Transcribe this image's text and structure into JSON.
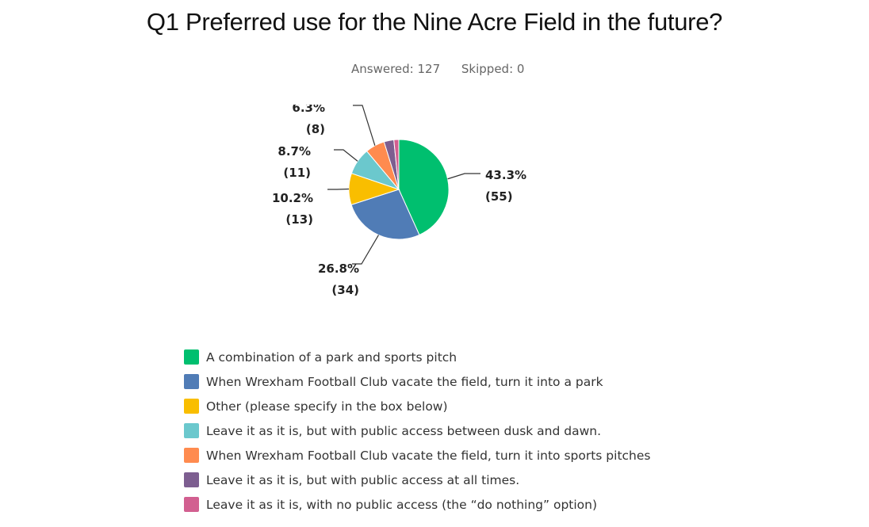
{
  "title": "Q1 Preferred use for the Nine Acre Field in the future?",
  "answered": "Answered: 127",
  "skipped": "Skipped: 0",
  "chart_data": {
    "type": "pie",
    "title": "Q1 Preferred use for the Nine Acre Field in the future?",
    "slices": [
      {
        "label": "A combination of a park and sports pitch",
        "percent": 43.3,
        "count": 55,
        "pct_label": "43.3%",
        "count_label": "(55)",
        "color": "#00bf6f"
      },
      {
        "label": "When Wrexham Football Club vacate the field, turn it into a park",
        "percent": 26.8,
        "count": 34,
        "pct_label": "26.8%",
        "count_label": "(34)",
        "color": "#507cb6"
      },
      {
        "label": "Other (please specify in the box below)",
        "percent": 10.2,
        "count": 13,
        "pct_label": "10.2%",
        "count_label": "(13)",
        "color": "#f9be00"
      },
      {
        "label": "Leave it as it is, but with public access between dusk and dawn.",
        "percent": 8.7,
        "count": 11,
        "pct_label": "8.7%",
        "count_label": "(11)",
        "color": "#6bc8cd"
      },
      {
        "label": "When Wrexham Football Club vacate the field, turn it into sports pitches",
        "percent": 6.3,
        "count": 8,
        "pct_label": "6.3%",
        "count_label": "(8)",
        "color": "#ff8b4f"
      },
      {
        "label": "Leave it as it is, but with public access at all times.",
        "percent": 3.2,
        "count": 4,
        "color": "#7d5e90"
      },
      {
        "label": "Leave it as it is, with no public access (the “do nothing” option)",
        "percent": 1.6,
        "count": 2,
        "color": "#d25f90"
      }
    ],
    "legend_position": "bottom-left"
  }
}
